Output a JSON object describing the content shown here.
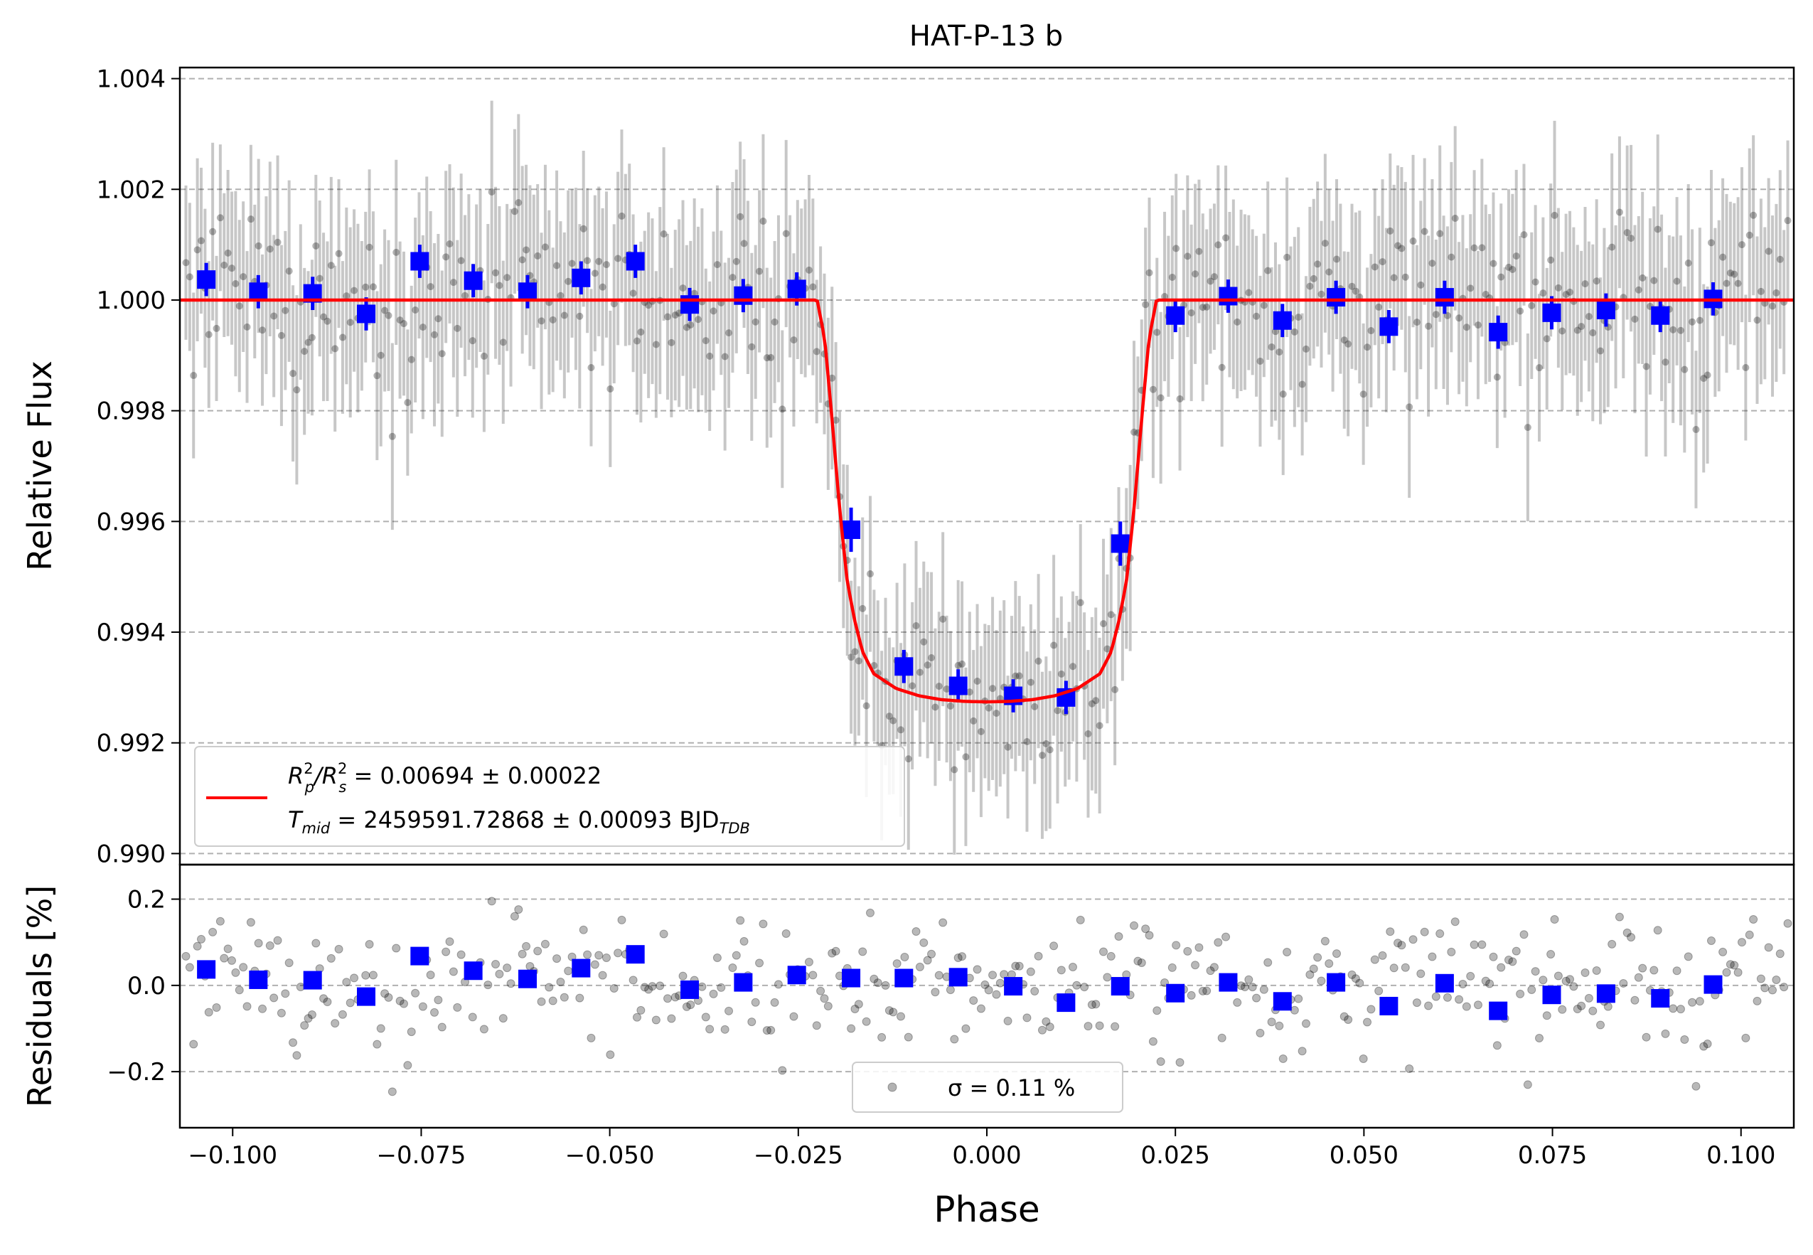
{
  "chart_data": [
    {
      "type": "scatter",
      "panel": "light curve",
      "title": "HAT-P-13 b",
      "ylabel": "Relative Flux",
      "xlim": [
        -0.107,
        0.107
      ],
      "ylim": [
        0.9898,
        1.0042
      ],
      "grid": "y-dashed",
      "yticks": [
        0.99,
        0.992,
        0.994,
        0.996,
        0.998,
        1.0,
        1.002,
        1.004
      ],
      "ytick_labels": [
        "0.990",
        "0.992",
        "0.994",
        "0.996",
        "0.998",
        "1.000",
        "1.002",
        "1.004"
      ],
      "legend": {
        "placement": "lower-left",
        "line_color": "#ff0000",
        "label_line1": "R²p/R²s = 0.00694 ± 0.00022",
        "label_line2": "Tmid = 2459591.72868 ± 0.00093 BJDTDB",
        "line1": {
          "r": "R",
          "p": "p",
          "p2": "2",
          "slash": "/R",
          "s": "s",
          "s2": "2",
          "rest": " = 0.00694 ± 0.00022"
        },
        "line2": {
          "t": "T",
          "mid": "mid",
          "rest": " = 2459591.72868 ± 0.00093 BJD",
          "tdb": "TDB"
        }
      },
      "model": {
        "name": "transit model",
        "color": "#ff0000",
        "x": [
          -0.107,
          -0.0225,
          -0.0215,
          -0.0205,
          -0.0195,
          -0.0185,
          -0.0175,
          -0.0165,
          -0.015,
          -0.012,
          -0.009,
          -0.006,
          -0.003,
          0.0,
          0.003,
          0.006,
          0.009,
          0.012,
          0.015,
          0.0165,
          0.0175,
          0.0185,
          0.0195,
          0.0205,
          0.0215,
          0.0225,
          0.107
        ],
        "y": [
          1.0,
          1.0,
          0.9993,
          0.9978,
          0.9962,
          0.9949,
          0.9942,
          0.99365,
          0.99325,
          0.99298,
          0.99285,
          0.99278,
          0.99275,
          0.99274,
          0.99275,
          0.99278,
          0.99285,
          0.99298,
          0.99325,
          0.99365,
          0.9942,
          0.9949,
          0.9962,
          0.9978,
          0.9993,
          1.0,
          1.0
        ]
      },
      "binned": {
        "name": "binned data",
        "color": "#0000ff",
        "x": [
          -0.1035,
          -0.0966,
          -0.0894,
          -0.0823,
          -0.0752,
          -0.0681,
          -0.0609,
          -0.0538,
          -0.0466,
          -0.0394,
          -0.0323,
          -0.0252,
          -0.018,
          -0.011,
          -0.0038,
          0.0035,
          0.0105,
          0.0177,
          0.025,
          0.032,
          0.0392,
          0.0463,
          0.0533,
          0.0607,
          0.0678,
          0.0749,
          0.0821,
          0.0893,
          0.0963
        ],
        "y": [
          1.00037,
          1.00015,
          1.00012,
          0.99975,
          1.0007,
          1.00035,
          1.00015,
          1.0004,
          1.0007,
          0.99992,
          1.00008,
          1.0002,
          0.99585,
          0.99338,
          0.99303,
          0.99285,
          0.99282,
          0.9956,
          0.99972,
          1.00007,
          0.99963,
          1.00005,
          0.99952,
          1.00005,
          0.99942,
          0.99977,
          0.99982,
          0.99972,
          1.00002
        ],
        "yerr": [
          0.0003,
          0.0003,
          0.0003,
          0.0003,
          0.0003,
          0.0003,
          0.0003,
          0.0003,
          0.0003,
          0.0003,
          0.0003,
          0.0003,
          0.0004,
          0.0003,
          0.0003,
          0.0003,
          0.0003,
          0.0004,
          0.0003,
          0.0003,
          0.0003,
          0.0003,
          0.0003,
          0.0003,
          0.0003,
          0.0003,
          0.0003,
          0.0003,
          0.0003
        ]
      },
      "raw": {
        "name": "raw data",
        "color": "#000000",
        "n_points": 420,
        "typical_err": 0.0015,
        "scatter_sigma": 0.0011
      }
    },
    {
      "type": "scatter",
      "panel": "residuals",
      "xlabel": "Phase",
      "ylabel": "Residuals [%]",
      "xlim": [
        -0.107,
        0.107
      ],
      "ylim": [
        -0.33,
        0.28
      ],
      "grid": "y-dashed",
      "xticks": [
        -0.1,
        -0.075,
        -0.05,
        -0.025,
        0.0,
        0.025,
        0.05,
        0.075,
        0.1
      ],
      "xtick_labels": [
        "−0.100",
        "−0.075",
        "−0.050",
        "−0.025",
        "0.000",
        "0.025",
        "0.050",
        "0.075",
        "0.100"
      ],
      "yticks": [
        -0.2,
        0.0,
        0.2
      ],
      "ytick_labels": [
        "−0.2",
        "0.0",
        "0.2"
      ],
      "legend": {
        "placement": "lower-center",
        "label": "σ = 0.11 %"
      },
      "binned": {
        "name": "binned residuals",
        "color": "#0000ff",
        "x": [
          -0.1035,
          -0.0966,
          -0.0894,
          -0.0823,
          -0.0752,
          -0.0681,
          -0.0609,
          -0.0538,
          -0.0466,
          -0.0394,
          -0.0323,
          -0.0252,
          -0.018,
          -0.011,
          -0.0038,
          0.0035,
          0.0105,
          0.0177,
          0.025,
          0.032,
          0.0392,
          0.0463,
          0.0533,
          0.0607,
          0.0678,
          0.0749,
          0.0821,
          0.0893,
          0.0963
        ],
        "y": [
          0.037,
          0.013,
          0.012,
          -0.026,
          0.068,
          0.034,
          0.015,
          0.04,
          0.072,
          -0.01,
          0.007,
          0.024,
          0.017,
          0.017,
          0.019,
          -0.002,
          -0.04,
          -0.002,
          -0.018,
          0.007,
          -0.037,
          0.007,
          -0.048,
          0.005,
          -0.059,
          -0.022,
          -0.019,
          -0.03,
          0.002
        ]
      },
      "raw": {
        "name": "raw residuals",
        "color": "#000000",
        "n_points": 420,
        "scatter_sigma": 0.11
      }
    }
  ]
}
